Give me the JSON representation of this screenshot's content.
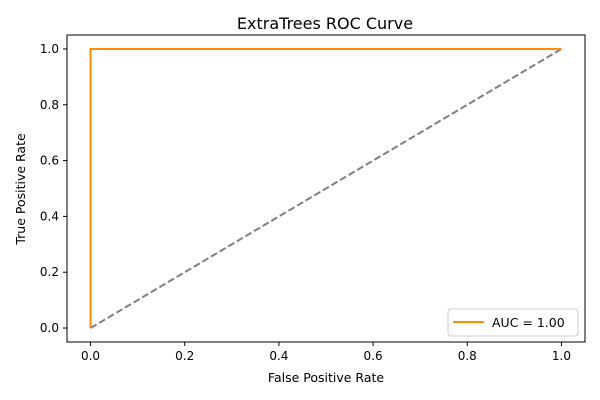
{
  "chart_data": {
    "type": "line",
    "title": "ExtraTrees ROC Curve",
    "xlabel": "False Positive Rate",
    "ylabel": "True Positive Rate",
    "xlim": [
      -0.05,
      1.05
    ],
    "ylim": [
      -0.05,
      1.05
    ],
    "xticks": [
      0.0,
      0.2,
      0.4,
      0.6,
      0.8,
      1.0
    ],
    "yticks": [
      0.0,
      0.2,
      0.4,
      0.6,
      0.8,
      1.0
    ],
    "xtick_labels": [
      "0.0",
      "0.2",
      "0.4",
      "0.6",
      "0.8",
      "1.0"
    ],
    "ytick_labels": [
      "0.0",
      "0.2",
      "0.4",
      "0.6",
      "0.8",
      "1.0"
    ],
    "grid": false,
    "legend_position": "lower-right",
    "series": [
      {
        "name": "AUC = 1.00",
        "color": "#ff8c00",
        "style": "solid",
        "x": [
          0.0,
          0.0,
          1.0
        ],
        "y": [
          0.0,
          1.0,
          1.0
        ]
      },
      {
        "color": "#808080",
        "style": "dashed",
        "x": [
          0.0,
          1.0
        ],
        "y": [
          0.0,
          1.0
        ]
      }
    ]
  }
}
